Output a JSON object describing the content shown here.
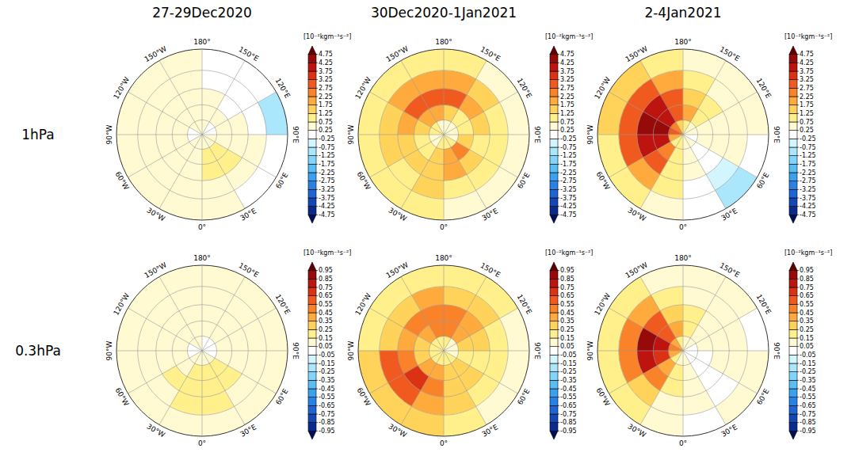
{
  "chart_data": {
    "type": "polar_heatmap",
    "column_titles": [
      "27-29Dec2020",
      "30Dec2020-1Jan2021",
      "2-4Jan2021"
    ],
    "lon_labels": [
      {
        "value": 180,
        "label": "180°"
      },
      {
        "value": 150,
        "label": "150°E"
      },
      {
        "value": 120,
        "label": "120°E"
      },
      {
        "value": 90,
        "label": "90°E"
      },
      {
        "value": 60,
        "label": "60°E"
      },
      {
        "value": 30,
        "label": "30°E"
      },
      {
        "value": 0,
        "label": "0°"
      },
      {
        "value": -30,
        "label": "30°W"
      },
      {
        "value": -60,
        "label": "60°W"
      },
      {
        "value": -90,
        "label": "90°W"
      },
      {
        "value": -120,
        "label": "120°W"
      },
      {
        "value": -150,
        "label": "150°W"
      }
    ],
    "lat_edges": [
      90,
      75,
      60,
      45,
      30,
      15
    ],
    "lon_edges": [
      -180,
      -150,
      -120,
      -90,
      -60,
      -30,
      0,
      30,
      60,
      90,
      120,
      150,
      180
    ],
    "colors": [
      "#000f5c",
      "#0a2a8c",
      "#1446b4",
      "#1e64d2",
      "#2882e6",
      "#3ca0f0",
      "#5abef5",
      "#82d4fa",
      "#aae6fc",
      "#d2f5fe",
      "#ffffff",
      "#fffad2",
      "#fff08c",
      "#ffd25a",
      "#ffaa3c",
      "#fa8228",
      "#f05a1e",
      "#dc3214",
      "#be1410",
      "#960a0a",
      "#640000"
    ],
    "rows": [
      {
        "label": "1hPa",
        "colorbar": {
          "label": "[10⁻²kgm⁻¹s⁻²]",
          "range": [
            -5.25,
            5.25
          ],
          "ticks": [
            -4.75,
            -4.25,
            -3.75,
            -3.25,
            -2.75,
            -2.25,
            -1.75,
            -1.25,
            -0.75,
            -0.25,
            0.25,
            0.75,
            1.25,
            1.75,
            2.25,
            2.75,
            3.25,
            3.75,
            4.25,
            4.75
          ]
        },
        "panels": [
          {
            "cells": [
              [
                0.3,
                0.3,
                0.2,
                0.1,
                0.3,
                0.4,
                0.5,
                0.5,
                0.3,
                0.2,
                0.2,
                0.3
              ],
              [
                0.5,
                0.6,
                0.5,
                0.4,
                0.5,
                0.6,
                0.8,
                0.9,
                0.6,
                0.4,
                0.3,
                0.4
              ],
              [
                0.6,
                0.6,
                0.5,
                0.5,
                0.6,
                0.7,
                0.9,
                1.0,
                0.7,
                0.3,
                0.1,
                0.3
              ],
              [
                0.5,
                0.5,
                0.4,
                0.4,
                0.6,
                0.6,
                0.7,
                0.6,
                0.3,
                0.1,
                0.0,
                0.1
              ],
              [
                0.4,
                0.3,
                0.3,
                0.3,
                0.4,
                0.4,
                0.4,
                0.2,
                0.0,
                -0.8,
                0.0,
                0.1
              ]
            ]
          },
          {
            "cells": [
              [
                0.5,
                0.8,
                0.8,
                0.6,
                0.5,
                0.8,
                1.2,
                1.0,
                0.5,
                0.3,
                0.4,
                0.5
              ],
              [
                2.0,
                2.2,
                1.6,
                1.2,
                1.2,
                1.5,
                2.2,
                2.6,
                1.3,
                0.8,
                1.0,
                1.5
              ],
              [
                3.0,
                2.8,
                2.0,
                1.5,
                1.3,
                1.6,
                1.8,
                1.6,
                1.2,
                1.3,
                1.8,
                2.8
              ],
              [
                2.2,
                2.0,
                1.6,
                1.3,
                1.2,
                1.4,
                1.2,
                1.0,
                0.9,
                1.0,
                1.3,
                1.8
              ],
              [
                1.0,
                1.0,
                0.9,
                0.8,
                0.8,
                0.8,
                0.6,
                0.5,
                0.5,
                0.5,
                0.6,
                0.8
              ]
            ]
          },
          {
            "cells": [
              [
                1.5,
                2.5,
                3.0,
                2.0,
                1.2,
                0.8,
                0.5,
                0.3,
                0.2,
                0.3,
                0.5,
                1.0
              ],
              [
                3.0,
                4.0,
                4.5,
                3.8,
                2.5,
                1.2,
                0.5,
                0.2,
                0.3,
                0.5,
                0.8,
                1.8
              ],
              [
                2.8,
                3.8,
                4.6,
                4.0,
                2.8,
                1.2,
                0.4,
                0.0,
                0.4,
                0.6,
                0.8,
                1.5
              ],
              [
                1.8,
                2.8,
                3.2,
                2.8,
                1.8,
                0.8,
                0.2,
                -0.6,
                0.3,
                0.5,
                0.6,
                1.0
              ],
              [
                1.0,
                1.5,
                1.5,
                1.2,
                0.8,
                0.4,
                0.1,
                -0.8,
                0.0,
                0.3,
                0.4,
                0.6
              ]
            ]
          }
        ]
      },
      {
        "label": "0.3hPa",
        "colorbar": {
          "label": "[10⁻²kgm⁻¹s⁻²]",
          "range": [
            -1.05,
            1.05
          ],
          "ticks": [
            -0.95,
            -0.85,
            -0.75,
            -0.65,
            -0.55,
            -0.45,
            -0.35,
            -0.25,
            -0.15,
            -0.05,
            0.05,
            0.15,
            0.25,
            0.35,
            0.45,
            0.55,
            0.65,
            0.75,
            0.85,
            0.95
          ]
        },
        "panels": [
          {
            "cells": [
              [
                0.05,
                0.05,
                0.04,
                0.03,
                0.06,
                0.08,
                0.1,
                0.08,
                0.04,
                0.03,
                0.03,
                0.04
              ],
              [
                0.1,
                0.1,
                0.08,
                0.08,
                0.12,
                0.16,
                0.18,
                0.18,
                0.12,
                0.08,
                0.08,
                0.1
              ],
              [
                0.12,
                0.1,
                0.1,
                0.1,
                0.16,
                0.2,
                0.2,
                0.18,
                0.12,
                0.1,
                0.08,
                0.1
              ],
              [
                0.1,
                0.1,
                0.08,
                0.1,
                0.14,
                0.18,
                0.16,
                0.14,
                0.1,
                0.08,
                0.06,
                0.08
              ],
              [
                0.08,
                0.08,
                0.06,
                0.08,
                0.1,
                0.12,
                0.1,
                0.08,
                0.06,
                0.06,
                0.05,
                0.06
              ]
            ]
          },
          {
            "cells": [
              [
                0.15,
                0.15,
                0.15,
                0.15,
                0.2,
                0.2,
                0.2,
                0.15,
                0.12,
                0.1,
                0.12,
                0.15
              ],
              [
                0.45,
                0.4,
                0.3,
                0.3,
                0.4,
                0.35,
                0.3,
                0.25,
                0.2,
                0.25,
                0.35,
                0.5
              ],
              [
                0.5,
                0.45,
                0.35,
                0.5,
                0.65,
                0.45,
                0.3,
                0.25,
                0.2,
                0.25,
                0.35,
                0.45
              ],
              [
                0.35,
                0.3,
                0.3,
                0.55,
                0.6,
                0.4,
                0.25,
                0.2,
                0.18,
                0.2,
                0.25,
                0.3
              ],
              [
                0.2,
                0.2,
                0.2,
                0.3,
                0.3,
                0.25,
                0.15,
                0.12,
                0.1,
                0.12,
                0.15,
                0.18
              ]
            ]
          },
          {
            "cells": [
              [
                0.2,
                0.4,
                0.5,
                0.4,
                0.2,
                0.1,
                0.05,
                0.03,
                0.02,
                0.03,
                0.05,
                0.1
              ],
              [
                0.35,
                0.6,
                0.8,
                0.7,
                0.4,
                0.15,
                0.05,
                0.02,
                0.03,
                0.05,
                0.1,
                0.2
              ],
              [
                0.3,
                0.55,
                0.85,
                0.8,
                0.45,
                0.15,
                0.05,
                0.0,
                0.05,
                0.08,
                0.1,
                0.2
              ],
              [
                0.2,
                0.35,
                0.5,
                0.5,
                0.3,
                0.1,
                0.05,
                0.02,
                0.05,
                0.05,
                0.08,
                0.12
              ],
              [
                0.1,
                0.15,
                0.2,
                0.2,
                0.15,
                0.06,
                0.03,
                0.1,
                0.06,
                0.04,
                0.05,
                0.06
              ]
            ]
          }
        ]
      }
    ]
  }
}
